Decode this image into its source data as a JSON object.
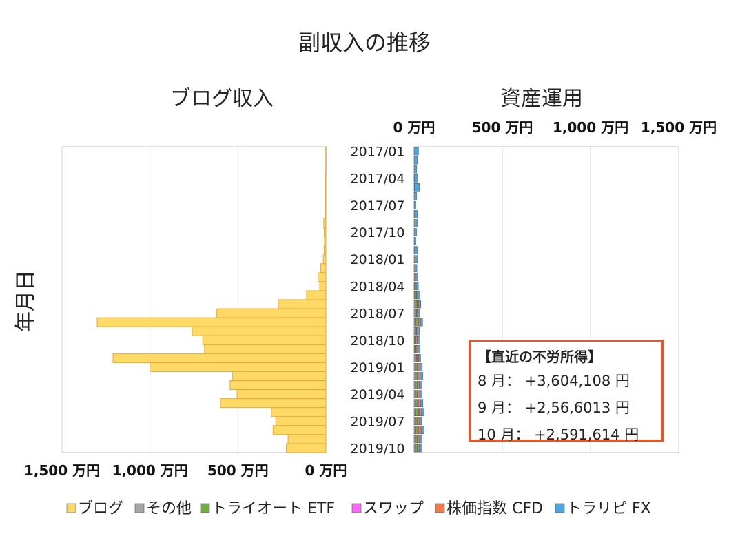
{
  "chart_data": {
    "type": "bar",
    "title": "副収入の推移",
    "ylabel": "年月日",
    "categories": [
      "2017/01",
      "2017/02",
      "2017/03",
      "2017/04",
      "2017/05",
      "2017/06",
      "2017/07",
      "2017/08",
      "2017/09",
      "2017/10",
      "2017/11",
      "2017/12",
      "2018/01",
      "2018/02",
      "2018/03",
      "2018/04",
      "2018/05",
      "2018/06",
      "2018/07",
      "2018/08",
      "2018/09",
      "2018/10",
      "2018/11",
      "2018/12",
      "2019/01",
      "2019/02",
      "2019/03",
      "2019/04",
      "2019/05",
      "2019/06",
      "2019/07",
      "2019/08",
      "2019/09",
      "2019/10"
    ],
    "category_labels": [
      "2017/01",
      "2017/04",
      "2017/07",
      "2017/10",
      "2018/01",
      "2018/04",
      "2018/07",
      "2018/10",
      "2019/01",
      "2019/04",
      "2019/07",
      "2019/10"
    ],
    "left_panel": {
      "title": "ブログ収入",
      "xlim": [
        1500,
        0
      ],
      "tick_values": [
        1500,
        1000,
        500,
        0
      ],
      "tick_labels": [
        "1,500 万円",
        "1,000 万円",
        "500 万円",
        "0 万円"
      ],
      "series": [
        {
          "name": "ブログ",
          "color": "#ffd966",
          "values": [
            1,
            1,
            1,
            2,
            2,
            3,
            3,
            4,
            12,
            10,
            8,
            10,
            15,
            30,
            45,
            35,
            110,
            270,
            620,
            1300,
            760,
            700,
            690,
            1210,
            1000,
            530,
            545,
            505,
            600,
            310,
            285,
            300,
            215,
            225
          ]
        }
      ]
    },
    "right_panel": {
      "title": "資産運用",
      "xlim": [
        0,
        1500
      ],
      "tick_values": [
        0,
        500,
        1000,
        1500
      ],
      "tick_labels": [
        "0 万円",
        "500 万円",
        "1,000 万円",
        "1,500 万円"
      ],
      "series": [
        {
          "name": "その他",
          "color": "#a5a5a5",
          "values": [
            0,
            0,
            0,
            0,
            0,
            0,
            0,
            0,
            0,
            0,
            0,
            0,
            0,
            0,
            0,
            2,
            4,
            6,
            6,
            10,
            6,
            4,
            4,
            6,
            8,
            6,
            8,
            8,
            8,
            10,
            8,
            10,
            8,
            8
          ]
        },
        {
          "name": "トライオート ETF",
          "color": "#70ad47",
          "values": [
            0,
            0,
            0,
            0,
            0,
            0,
            0,
            0,
            0,
            0,
            0,
            0,
            0,
            0,
            0,
            4,
            8,
            10,
            8,
            12,
            6,
            4,
            5,
            8,
            10,
            12,
            10,
            10,
            12,
            16,
            10,
            12,
            10,
            10
          ]
        },
        {
          "name": "スワップ",
          "color": "#ff66ff",
          "values": [
            0,
            0,
            0,
            0,
            0,
            0,
            0,
            0,
            0,
            0,
            0,
            0,
            0,
            0,
            0,
            0,
            2,
            2,
            2,
            4,
            3,
            3,
            3,
            3,
            4,
            4,
            4,
            4,
            4,
            4,
            3,
            4,
            3,
            3
          ]
        },
        {
          "name": "株価指数 CFD",
          "color": "#f4794d",
          "values": [
            0,
            0,
            0,
            2,
            2,
            0,
            0,
            4,
            6,
            0,
            0,
            4,
            6,
            6,
            8,
            6,
            6,
            8,
            6,
            10,
            6,
            6,
            8,
            8,
            10,
            12,
            8,
            10,
            12,
            12,
            10,
            14,
            10,
            8
          ]
        },
        {
          "name": "トラリピ FX",
          "color": "#4ea5e0",
          "values": [
            25,
            18,
            15,
            18,
            28,
            14,
            10,
            15,
            12,
            14,
            10,
            14,
            12,
            10,
            12,
            12,
            14,
            12,
            10,
            12,
            10,
            12,
            12,
            12,
            14,
            16,
            14,
            12,
            14,
            14,
            12,
            16,
            14,
            12
          ]
        }
      ]
    },
    "legend": {
      "placement": "bottom",
      "items": [
        {
          "label": "ブログ",
          "color": "#ffd966"
        },
        {
          "label": "その他",
          "color": "#a5a5a5"
        },
        {
          "label": "トライオート ETF",
          "color": "#70ad47"
        },
        {
          "label": "スワップ",
          "color": "#ff66ff"
        },
        {
          "label": "株価指数 CFD",
          "color": "#f4794d"
        },
        {
          "label": "トラリピ FX",
          "color": "#4ea5e0"
        }
      ]
    },
    "grid": true
  },
  "callout": {
    "title": "【直近の不労所得】",
    "lines": [
      "8 月： +3,604,108 円",
      "9 月： +2,56,6013 円",
      "10 月： +2,591,614 円"
    ]
  }
}
